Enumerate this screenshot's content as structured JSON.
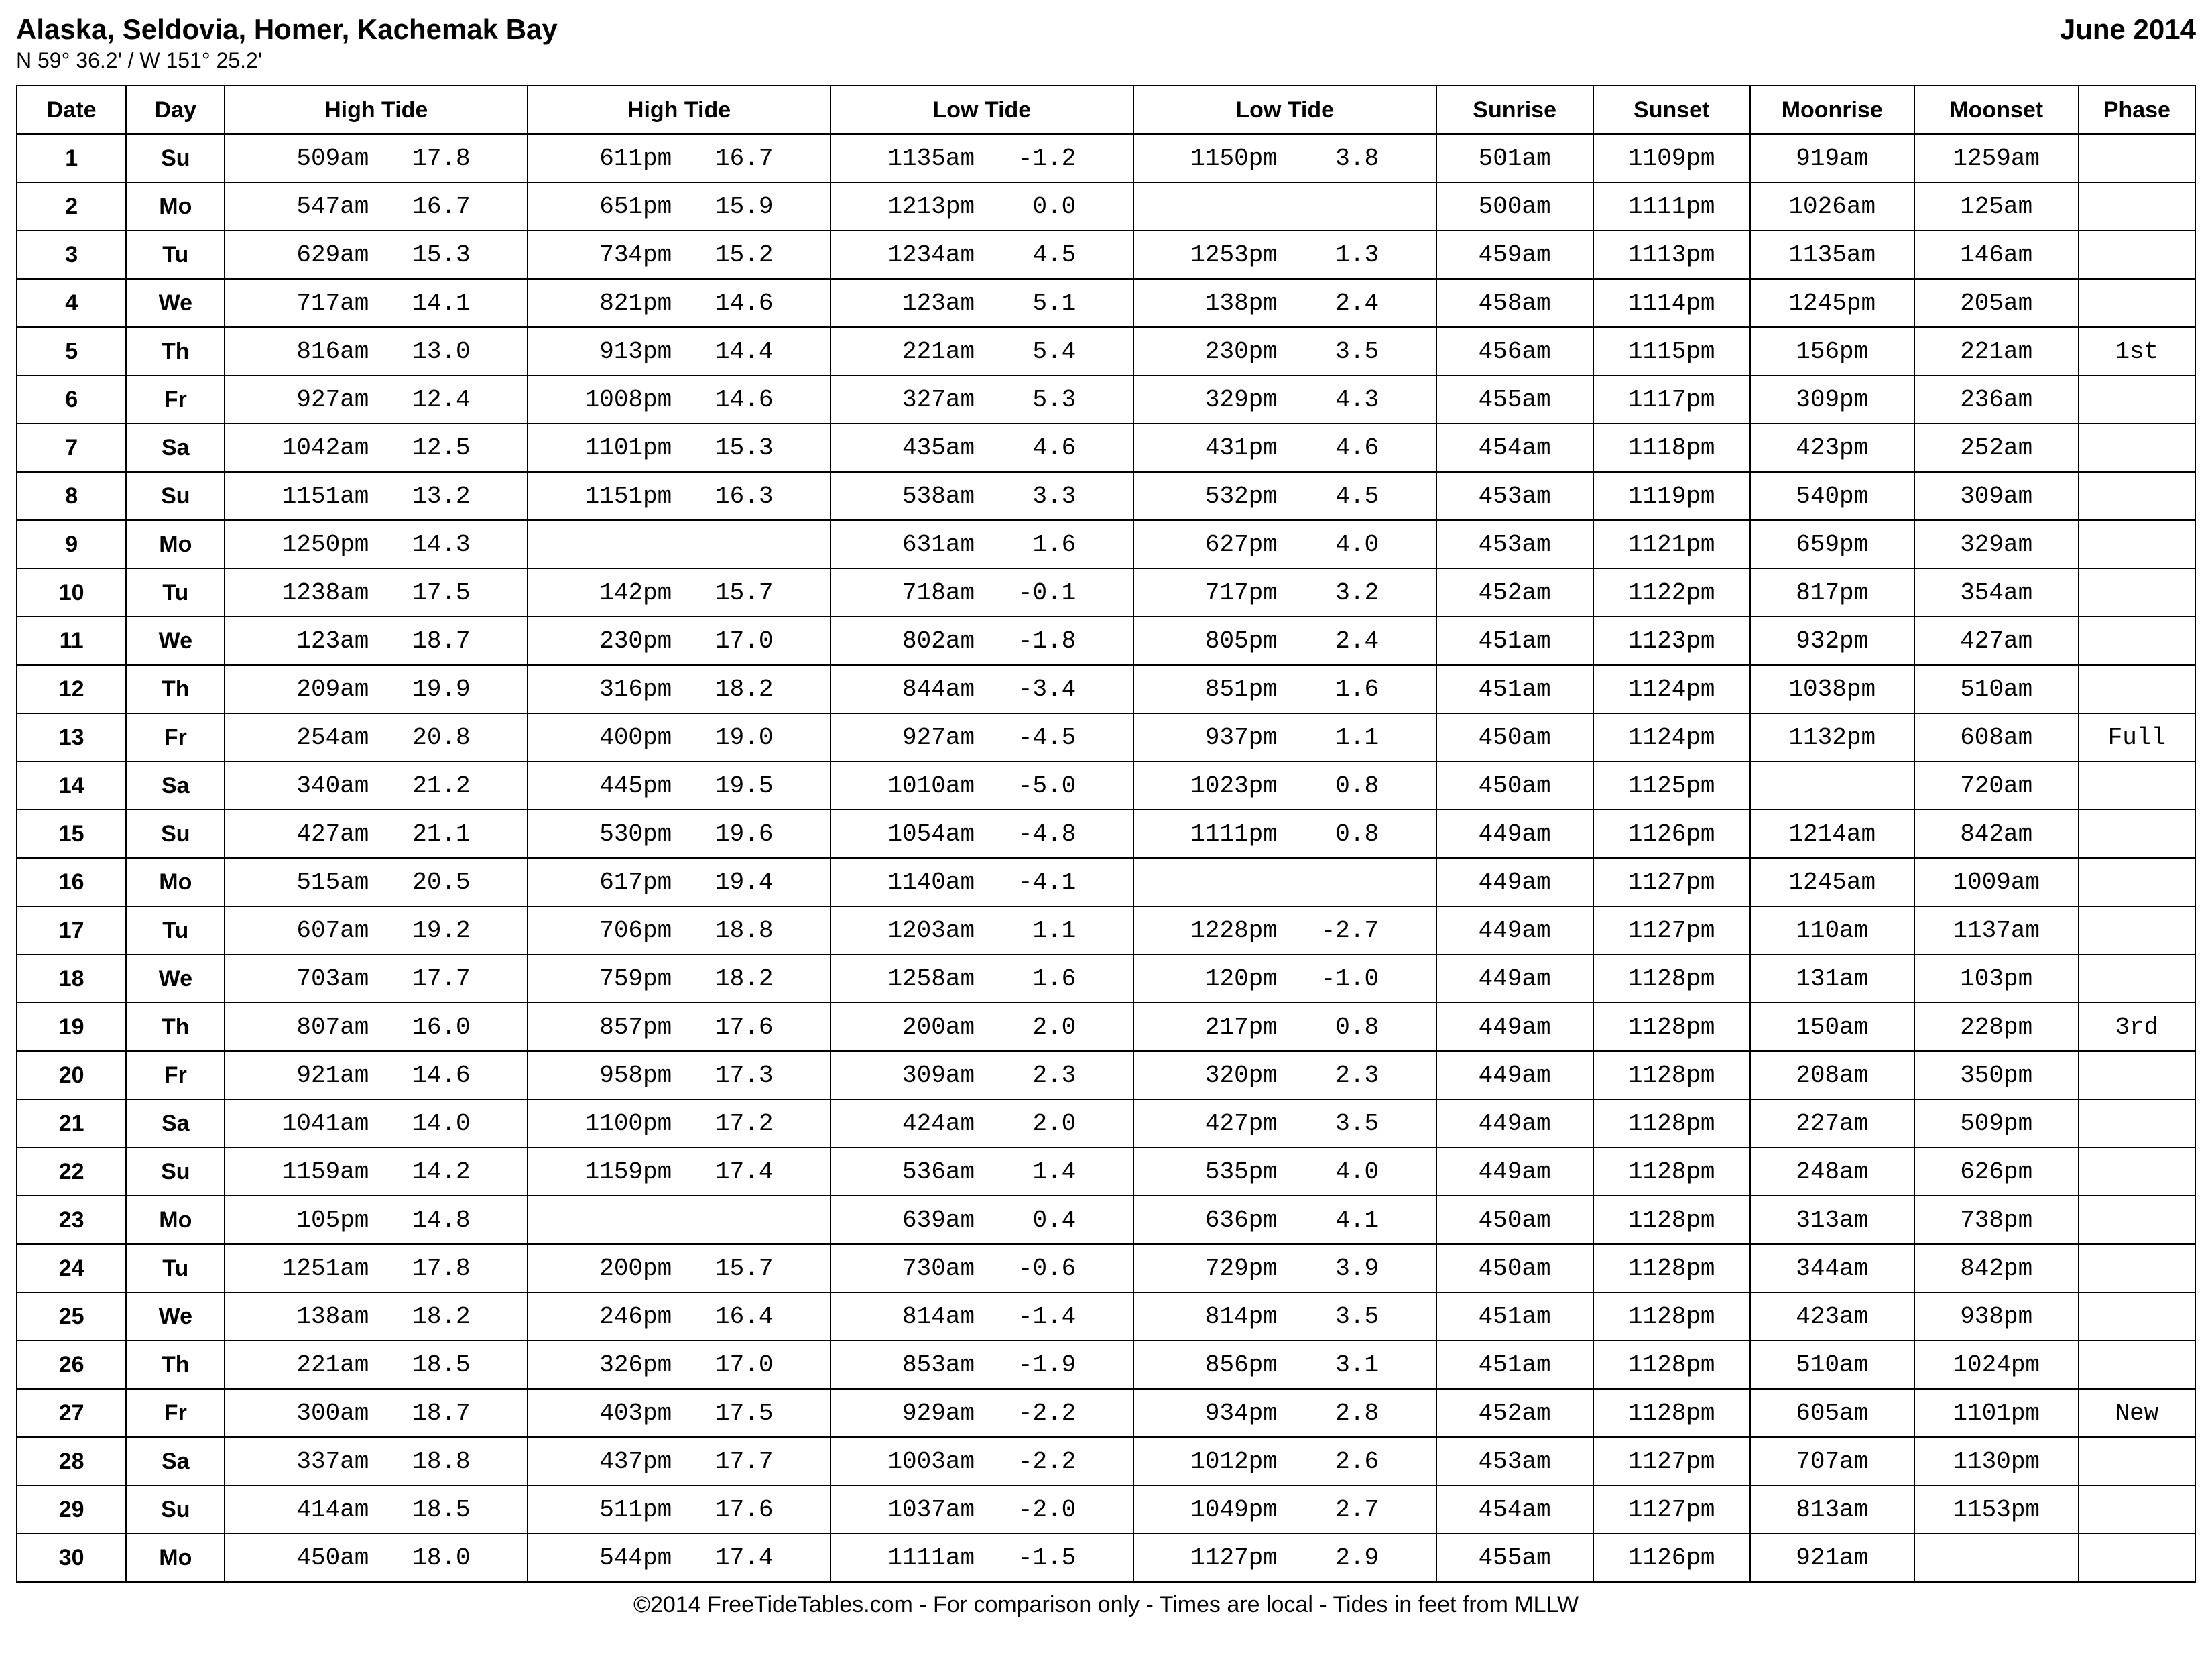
{
  "header": {
    "location": "Alaska, Seldovia, Homer, Kachemak Bay",
    "month": "June 2014",
    "coordinates": "N 59° 36.2' / W 151° 25.2'"
  },
  "columns": [
    "Date",
    "Day",
    "High Tide",
    "High Tide",
    "Low Tide",
    "Low Tide",
    "Sunrise",
    "Sunset",
    "Moonrise",
    "Moonset",
    "Phase"
  ],
  "rows": [
    {
      "date": "1",
      "day": "Su",
      "h1t": "509am",
      "h1v": "17.8",
      "h2t": "611pm",
      "h2v": "16.7",
      "l1t": "1135am",
      "l1v": "-1.2",
      "l2t": "1150pm",
      "l2v": "3.8",
      "sr": "501am",
      "ss": "1109pm",
      "mr": "919am",
      "ms": "1259am",
      "ph": ""
    },
    {
      "date": "2",
      "day": "Mo",
      "h1t": "547am",
      "h1v": "16.7",
      "h2t": "651pm",
      "h2v": "15.9",
      "l1t": "1213pm",
      "l1v": "0.0",
      "l2t": "",
      "l2v": "",
      "sr": "500am",
      "ss": "1111pm",
      "mr": "1026am",
      "ms": "125am",
      "ph": ""
    },
    {
      "date": "3",
      "day": "Tu",
      "h1t": "629am",
      "h1v": "15.3",
      "h2t": "734pm",
      "h2v": "15.2",
      "l1t": "1234am",
      "l1v": "4.5",
      "l2t": "1253pm",
      "l2v": "1.3",
      "sr": "459am",
      "ss": "1113pm",
      "mr": "1135am",
      "ms": "146am",
      "ph": ""
    },
    {
      "date": "4",
      "day": "We",
      "h1t": "717am",
      "h1v": "14.1",
      "h2t": "821pm",
      "h2v": "14.6",
      "l1t": "123am",
      "l1v": "5.1",
      "l2t": "138pm",
      "l2v": "2.4",
      "sr": "458am",
      "ss": "1114pm",
      "mr": "1245pm",
      "ms": "205am",
      "ph": ""
    },
    {
      "date": "5",
      "day": "Th",
      "h1t": "816am",
      "h1v": "13.0",
      "h2t": "913pm",
      "h2v": "14.4",
      "l1t": "221am",
      "l1v": "5.4",
      "l2t": "230pm",
      "l2v": "3.5",
      "sr": "456am",
      "ss": "1115pm",
      "mr": "156pm",
      "ms": "221am",
      "ph": "1st"
    },
    {
      "date": "6",
      "day": "Fr",
      "h1t": "927am",
      "h1v": "12.4",
      "h2t": "1008pm",
      "h2v": "14.6",
      "l1t": "327am",
      "l1v": "5.3",
      "l2t": "329pm",
      "l2v": "4.3",
      "sr": "455am",
      "ss": "1117pm",
      "mr": "309pm",
      "ms": "236am",
      "ph": ""
    },
    {
      "date": "7",
      "day": "Sa",
      "h1t": "1042am",
      "h1v": "12.5",
      "h2t": "1101pm",
      "h2v": "15.3",
      "l1t": "435am",
      "l1v": "4.6",
      "l2t": "431pm",
      "l2v": "4.6",
      "sr": "454am",
      "ss": "1118pm",
      "mr": "423pm",
      "ms": "252am",
      "ph": ""
    },
    {
      "date": "8",
      "day": "Su",
      "h1t": "1151am",
      "h1v": "13.2",
      "h2t": "1151pm",
      "h2v": "16.3",
      "l1t": "538am",
      "l1v": "3.3",
      "l2t": "532pm",
      "l2v": "4.5",
      "sr": "453am",
      "ss": "1119pm",
      "mr": "540pm",
      "ms": "309am",
      "ph": ""
    },
    {
      "date": "9",
      "day": "Mo",
      "h1t": "1250pm",
      "h1v": "14.3",
      "h2t": "",
      "h2v": "",
      "l1t": "631am",
      "l1v": "1.6",
      "l2t": "627pm",
      "l2v": "4.0",
      "sr": "453am",
      "ss": "1121pm",
      "mr": "659pm",
      "ms": "329am",
      "ph": ""
    },
    {
      "date": "10",
      "day": "Tu",
      "h1t": "1238am",
      "h1v": "17.5",
      "h2t": "142pm",
      "h2v": "15.7",
      "l1t": "718am",
      "l1v": "-0.1",
      "l2t": "717pm",
      "l2v": "3.2",
      "sr": "452am",
      "ss": "1122pm",
      "mr": "817pm",
      "ms": "354am",
      "ph": ""
    },
    {
      "date": "11",
      "day": "We",
      "h1t": "123am",
      "h1v": "18.7",
      "h2t": "230pm",
      "h2v": "17.0",
      "l1t": "802am",
      "l1v": "-1.8",
      "l2t": "805pm",
      "l2v": "2.4",
      "sr": "451am",
      "ss": "1123pm",
      "mr": "932pm",
      "ms": "427am",
      "ph": ""
    },
    {
      "date": "12",
      "day": "Th",
      "h1t": "209am",
      "h1v": "19.9",
      "h2t": "316pm",
      "h2v": "18.2",
      "l1t": "844am",
      "l1v": "-3.4",
      "l2t": "851pm",
      "l2v": "1.6",
      "sr": "451am",
      "ss": "1124pm",
      "mr": "1038pm",
      "ms": "510am",
      "ph": ""
    },
    {
      "date": "13",
      "day": "Fr",
      "h1t": "254am",
      "h1v": "20.8",
      "h2t": "400pm",
      "h2v": "19.0",
      "l1t": "927am",
      "l1v": "-4.5",
      "l2t": "937pm",
      "l2v": "1.1",
      "sr": "450am",
      "ss": "1124pm",
      "mr": "1132pm",
      "ms": "608am",
      "ph": "Full"
    },
    {
      "date": "14",
      "day": "Sa",
      "h1t": "340am",
      "h1v": "21.2",
      "h2t": "445pm",
      "h2v": "19.5",
      "l1t": "1010am",
      "l1v": "-5.0",
      "l2t": "1023pm",
      "l2v": "0.8",
      "sr": "450am",
      "ss": "1125pm",
      "mr": "",
      "ms": "720am",
      "ph": ""
    },
    {
      "date": "15",
      "day": "Su",
      "h1t": "427am",
      "h1v": "21.1",
      "h2t": "530pm",
      "h2v": "19.6",
      "l1t": "1054am",
      "l1v": "-4.8",
      "l2t": "1111pm",
      "l2v": "0.8",
      "sr": "449am",
      "ss": "1126pm",
      "mr": "1214am",
      "ms": "842am",
      "ph": ""
    },
    {
      "date": "16",
      "day": "Mo",
      "h1t": "515am",
      "h1v": "20.5",
      "h2t": "617pm",
      "h2v": "19.4",
      "l1t": "1140am",
      "l1v": "-4.1",
      "l2t": "",
      "l2v": "",
      "sr": "449am",
      "ss": "1127pm",
      "mr": "1245am",
      "ms": "1009am",
      "ph": ""
    },
    {
      "date": "17",
      "day": "Tu",
      "h1t": "607am",
      "h1v": "19.2",
      "h2t": "706pm",
      "h2v": "18.8",
      "l1t": "1203am",
      "l1v": "1.1",
      "l2t": "1228pm",
      "l2v": "-2.7",
      "sr": "449am",
      "ss": "1127pm",
      "mr": "110am",
      "ms": "1137am",
      "ph": ""
    },
    {
      "date": "18",
      "day": "We",
      "h1t": "703am",
      "h1v": "17.7",
      "h2t": "759pm",
      "h2v": "18.2",
      "l1t": "1258am",
      "l1v": "1.6",
      "l2t": "120pm",
      "l2v": "-1.0",
      "sr": "449am",
      "ss": "1128pm",
      "mr": "131am",
      "ms": "103pm",
      "ph": ""
    },
    {
      "date": "19",
      "day": "Th",
      "h1t": "807am",
      "h1v": "16.0",
      "h2t": "857pm",
      "h2v": "17.6",
      "l1t": "200am",
      "l1v": "2.0",
      "l2t": "217pm",
      "l2v": "0.8",
      "sr": "449am",
      "ss": "1128pm",
      "mr": "150am",
      "ms": "228pm",
      "ph": "3rd"
    },
    {
      "date": "20",
      "day": "Fr",
      "h1t": "921am",
      "h1v": "14.6",
      "h2t": "958pm",
      "h2v": "17.3",
      "l1t": "309am",
      "l1v": "2.3",
      "l2t": "320pm",
      "l2v": "2.3",
      "sr": "449am",
      "ss": "1128pm",
      "mr": "208am",
      "ms": "350pm",
      "ph": ""
    },
    {
      "date": "21",
      "day": "Sa",
      "h1t": "1041am",
      "h1v": "14.0",
      "h2t": "1100pm",
      "h2v": "17.2",
      "l1t": "424am",
      "l1v": "2.0",
      "l2t": "427pm",
      "l2v": "3.5",
      "sr": "449am",
      "ss": "1128pm",
      "mr": "227am",
      "ms": "509pm",
      "ph": ""
    },
    {
      "date": "22",
      "day": "Su",
      "h1t": "1159am",
      "h1v": "14.2",
      "h2t": "1159pm",
      "h2v": "17.4",
      "l1t": "536am",
      "l1v": "1.4",
      "l2t": "535pm",
      "l2v": "4.0",
      "sr": "449am",
      "ss": "1128pm",
      "mr": "248am",
      "ms": "626pm",
      "ph": ""
    },
    {
      "date": "23",
      "day": "Mo",
      "h1t": "105pm",
      "h1v": "14.8",
      "h2t": "",
      "h2v": "",
      "l1t": "639am",
      "l1v": "0.4",
      "l2t": "636pm",
      "l2v": "4.1",
      "sr": "450am",
      "ss": "1128pm",
      "mr": "313am",
      "ms": "738pm",
      "ph": ""
    },
    {
      "date": "24",
      "day": "Tu",
      "h1t": "1251am",
      "h1v": "17.8",
      "h2t": "200pm",
      "h2v": "15.7",
      "l1t": "730am",
      "l1v": "-0.6",
      "l2t": "729pm",
      "l2v": "3.9",
      "sr": "450am",
      "ss": "1128pm",
      "mr": "344am",
      "ms": "842pm",
      "ph": ""
    },
    {
      "date": "25",
      "day": "We",
      "h1t": "138am",
      "h1v": "18.2",
      "h2t": "246pm",
      "h2v": "16.4",
      "l1t": "814am",
      "l1v": "-1.4",
      "l2t": "814pm",
      "l2v": "3.5",
      "sr": "451am",
      "ss": "1128pm",
      "mr": "423am",
      "ms": "938pm",
      "ph": ""
    },
    {
      "date": "26",
      "day": "Th",
      "h1t": "221am",
      "h1v": "18.5",
      "h2t": "326pm",
      "h2v": "17.0",
      "l1t": "853am",
      "l1v": "-1.9",
      "l2t": "856pm",
      "l2v": "3.1",
      "sr": "451am",
      "ss": "1128pm",
      "mr": "510am",
      "ms": "1024pm",
      "ph": ""
    },
    {
      "date": "27",
      "day": "Fr",
      "h1t": "300am",
      "h1v": "18.7",
      "h2t": "403pm",
      "h2v": "17.5",
      "l1t": "929am",
      "l1v": "-2.2",
      "l2t": "934pm",
      "l2v": "2.8",
      "sr": "452am",
      "ss": "1128pm",
      "mr": "605am",
      "ms": "1101pm",
      "ph": "New"
    },
    {
      "date": "28",
      "day": "Sa",
      "h1t": "337am",
      "h1v": "18.8",
      "h2t": "437pm",
      "h2v": "17.7",
      "l1t": "1003am",
      "l1v": "-2.2",
      "l2t": "1012pm",
      "l2v": "2.6",
      "sr": "453am",
      "ss": "1127pm",
      "mr": "707am",
      "ms": "1130pm",
      "ph": ""
    },
    {
      "date": "29",
      "day": "Su",
      "h1t": "414am",
      "h1v": "18.5",
      "h2t": "511pm",
      "h2v": "17.6",
      "l1t": "1037am",
      "l1v": "-2.0",
      "l2t": "1049pm",
      "l2v": "2.7",
      "sr": "454am",
      "ss": "1127pm",
      "mr": "813am",
      "ms": "1153pm",
      "ph": ""
    },
    {
      "date": "30",
      "day": "Mo",
      "h1t": "450am",
      "h1v": "18.0",
      "h2t": "544pm",
      "h2v": "17.4",
      "l1t": "1111am",
      "l1v": "-1.5",
      "l2t": "1127pm",
      "l2v": "2.9",
      "sr": "455am",
      "ss": "1126pm",
      "mr": "921am",
      "ms": "",
      "ph": ""
    }
  ],
  "footer": "©2014 FreeTideTables.com - For comparison only - Times are local - Tides in feet from MLLW",
  "style": {
    "background_color": "#ffffff",
    "text_color": "#000000",
    "border_color": "#000000",
    "header_fontsize": 42,
    "coord_fontsize": 32,
    "cell_fontsize": 34,
    "mono_fontsize": 36,
    "footer_fontsize": 34,
    "time_width": 6,
    "value_width": 5
  }
}
